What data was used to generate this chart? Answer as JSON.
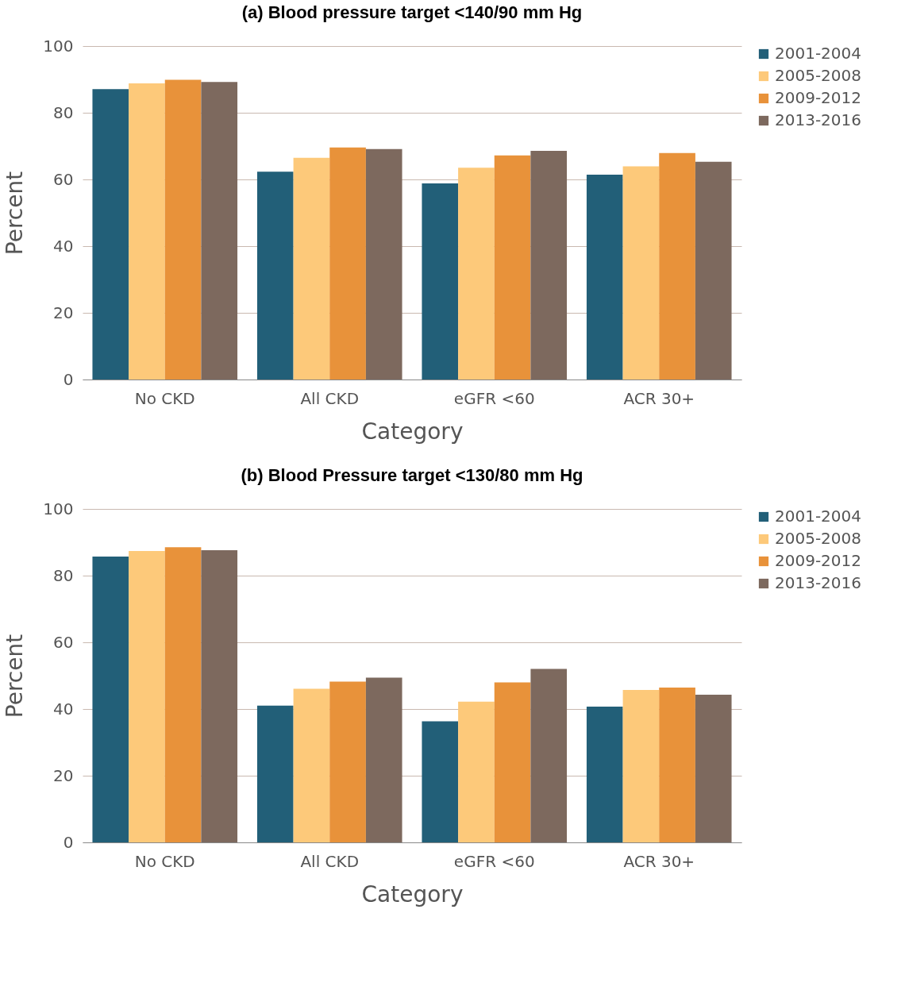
{
  "chart_data": [
    {
      "type": "bar",
      "title": "(a) Blood pressure target <140/90 mm Hg",
      "xlabel": "Category",
      "ylabel": "Percent",
      "categories": [
        "No CKD",
        "All CKD",
        "eGFR <60",
        "ACR 30+"
      ],
      "ylim": [
        0,
        100
      ],
      "yticks": [
        0,
        20,
        40,
        60,
        80,
        100
      ],
      "grid": "y",
      "legend": "right",
      "series": [
        {
          "name": "2001-2004",
          "color": "#225f78",
          "values": [
            87.1,
            62.3,
            58.8,
            61.4
          ]
        },
        {
          "name": "2005-2008",
          "color": "#fdc97a",
          "values": [
            88.8,
            66.5,
            63.5,
            63.9
          ]
        },
        {
          "name": "2009-2012",
          "color": "#e8923a",
          "values": [
            89.9,
            69.6,
            67.2,
            67.9
          ]
        },
        {
          "name": "2013-2016",
          "color": "#7d695e",
          "values": [
            89.2,
            69.1,
            68.6,
            65.3
          ]
        }
      ]
    },
    {
      "type": "bar",
      "title": "(b) Blood Pressure target <130/80 mm Hg",
      "xlabel": "Category",
      "ylabel": "Percent",
      "categories": [
        "No CKD",
        "All CKD",
        "eGFR <60",
        "ACR 30+"
      ],
      "ylim": [
        0,
        100
      ],
      "yticks": [
        0,
        20,
        40,
        60,
        80,
        100
      ],
      "grid": "y",
      "legend": "right",
      "series": [
        {
          "name": "2001-2004",
          "color": "#225f78",
          "values": [
            85.7,
            41.0,
            36.3,
            40.7
          ]
        },
        {
          "name": "2005-2008",
          "color": "#fdc97a",
          "values": [
            87.4,
            46.1,
            42.2,
            45.7
          ]
        },
        {
          "name": "2009-2012",
          "color": "#e8923a",
          "values": [
            88.5,
            48.2,
            48.0,
            46.4
          ]
        },
        {
          "name": "2013-2016",
          "color": "#7d695e",
          "values": [
            87.6,
            49.4,
            52.0,
            44.3
          ]
        }
      ]
    }
  ]
}
